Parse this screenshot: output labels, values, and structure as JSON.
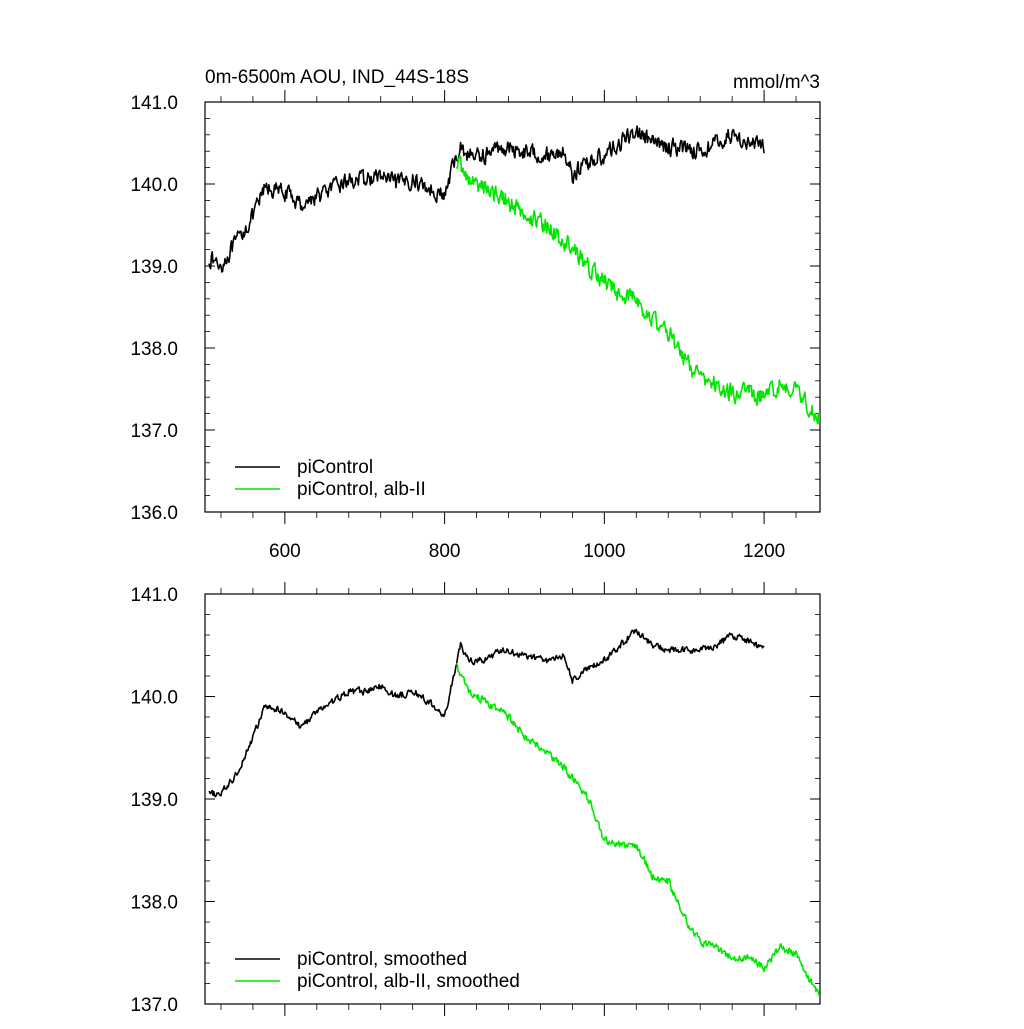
{
  "title_left": "0m-6500m AOU, IND_44S-18S",
  "title_right": "mmol/m^3",
  "colors": {
    "picontrol": "#000000",
    "alb": "#00e600"
  },
  "chart_data": [
    {
      "type": "line",
      "title": "0m-6500m AOU, IND_44S-18S",
      "units": "mmol/m^3",
      "xlabel": "",
      "ylabel": "",
      "xlim": [
        500,
        1270
      ],
      "ylim": [
        136.0,
        141.0
      ],
      "x_ticks": [
        600,
        800,
        1000,
        1200
      ],
      "y_ticks": [
        136.0,
        137.0,
        138.0,
        139.0,
        140.0,
        141.0
      ],
      "y_tick_labels": [
        "136.0",
        "137.0",
        "138.0",
        "139.0",
        "140.0",
        "141.0"
      ],
      "x_tick_labels": [
        "600",
        "800",
        "1000",
        "1200"
      ],
      "grid": false,
      "legend_position": "bottom-left",
      "series": [
        {
          "name": "piControl",
          "color": "#000000",
          "noise": 0.09,
          "x": [
            505,
            520,
            540,
            560,
            575,
            600,
            620,
            640,
            660,
            680,
            700,
            720,
            740,
            760,
            780,
            800,
            810,
            820,
            830,
            850,
            870,
            900,
            930,
            950,
            960,
            975,
            1000,
            1020,
            1040,
            1060,
            1080,
            1100,
            1120,
            1140,
            1160,
            1180,
            1200
          ],
          "y": [
            139.1,
            139.0,
            139.3,
            139.6,
            139.95,
            139.9,
            139.75,
            139.85,
            139.95,
            140.05,
            140.05,
            140.1,
            140.0,
            140.05,
            139.95,
            139.85,
            140.2,
            140.45,
            140.35,
            140.35,
            140.45,
            140.4,
            140.35,
            140.4,
            140.1,
            140.25,
            140.35,
            140.5,
            140.65,
            140.5,
            140.45,
            140.45,
            140.4,
            140.5,
            140.6,
            140.5,
            140.45
          ]
        },
        {
          "name": "piControl, alb-II",
          "color": "#00e600",
          "noise": 0.1,
          "x": [
            815,
            830,
            850,
            880,
            900,
            920,
            950,
            980,
            1000,
            1020,
            1040,
            1060,
            1080,
            1100,
            1120,
            1140,
            1160,
            1180,
            1200,
            1220,
            1240,
            1260,
            1270
          ],
          "y": [
            140.3,
            140.05,
            139.95,
            139.8,
            139.6,
            139.55,
            139.3,
            139.0,
            138.8,
            138.65,
            138.6,
            138.35,
            138.2,
            137.85,
            137.65,
            137.55,
            137.45,
            137.45,
            137.4,
            137.55,
            137.5,
            137.25,
            137.15
          ]
        }
      ]
    },
    {
      "type": "line",
      "title": "",
      "xlabel": "",
      "ylabel": "",
      "xlim": [
        500,
        1270
      ],
      "ylim": [
        137.0,
        141.0
      ],
      "x_ticks": [
        600,
        800,
        1000,
        1200
      ],
      "y_ticks": [
        137.0,
        138.0,
        139.0,
        140.0,
        141.0
      ],
      "y_tick_labels": [
        "137.0",
        "138.0",
        "139.0",
        "140.0",
        "141.0"
      ],
      "x_tick_labels": [],
      "grid": false,
      "legend_position": "bottom-left",
      "series": [
        {
          "name": "piControl, smoothed",
          "color": "#000000",
          "noise": 0.03,
          "x": [
            505,
            520,
            540,
            560,
            575,
            600,
            620,
            640,
            660,
            680,
            700,
            720,
            740,
            760,
            780,
            800,
            810,
            820,
            830,
            850,
            870,
            900,
            930,
            950,
            960,
            975,
            1000,
            1020,
            1040,
            1060,
            1080,
            1100,
            1120,
            1140,
            1160,
            1180,
            1200
          ],
          "y": [
            139.05,
            139.05,
            139.25,
            139.6,
            139.9,
            139.85,
            139.7,
            139.85,
            139.95,
            140.05,
            140.05,
            140.1,
            140.0,
            140.05,
            139.95,
            139.8,
            140.15,
            140.5,
            140.35,
            140.35,
            140.45,
            140.4,
            140.35,
            140.4,
            140.15,
            140.25,
            140.35,
            140.5,
            140.65,
            140.5,
            140.45,
            140.45,
            140.45,
            140.5,
            140.6,
            140.55,
            140.45
          ]
        },
        {
          "name": "piControl, alb-II, smoothed",
          "color": "#00e600",
          "noise": 0.035,
          "x": [
            815,
            830,
            850,
            880,
            900,
            920,
            950,
            980,
            1000,
            1020,
            1040,
            1060,
            1080,
            1100,
            1120,
            1140,
            1160,
            1180,
            1200,
            1220,
            1240,
            1260,
            1270
          ],
          "y": [
            140.3,
            140.05,
            139.95,
            139.8,
            139.6,
            139.5,
            139.3,
            139.0,
            138.6,
            138.55,
            138.55,
            138.25,
            138.2,
            137.85,
            137.6,
            137.55,
            137.45,
            137.45,
            137.35,
            137.55,
            137.5,
            137.2,
            137.1
          ]
        }
      ]
    }
  ]
}
